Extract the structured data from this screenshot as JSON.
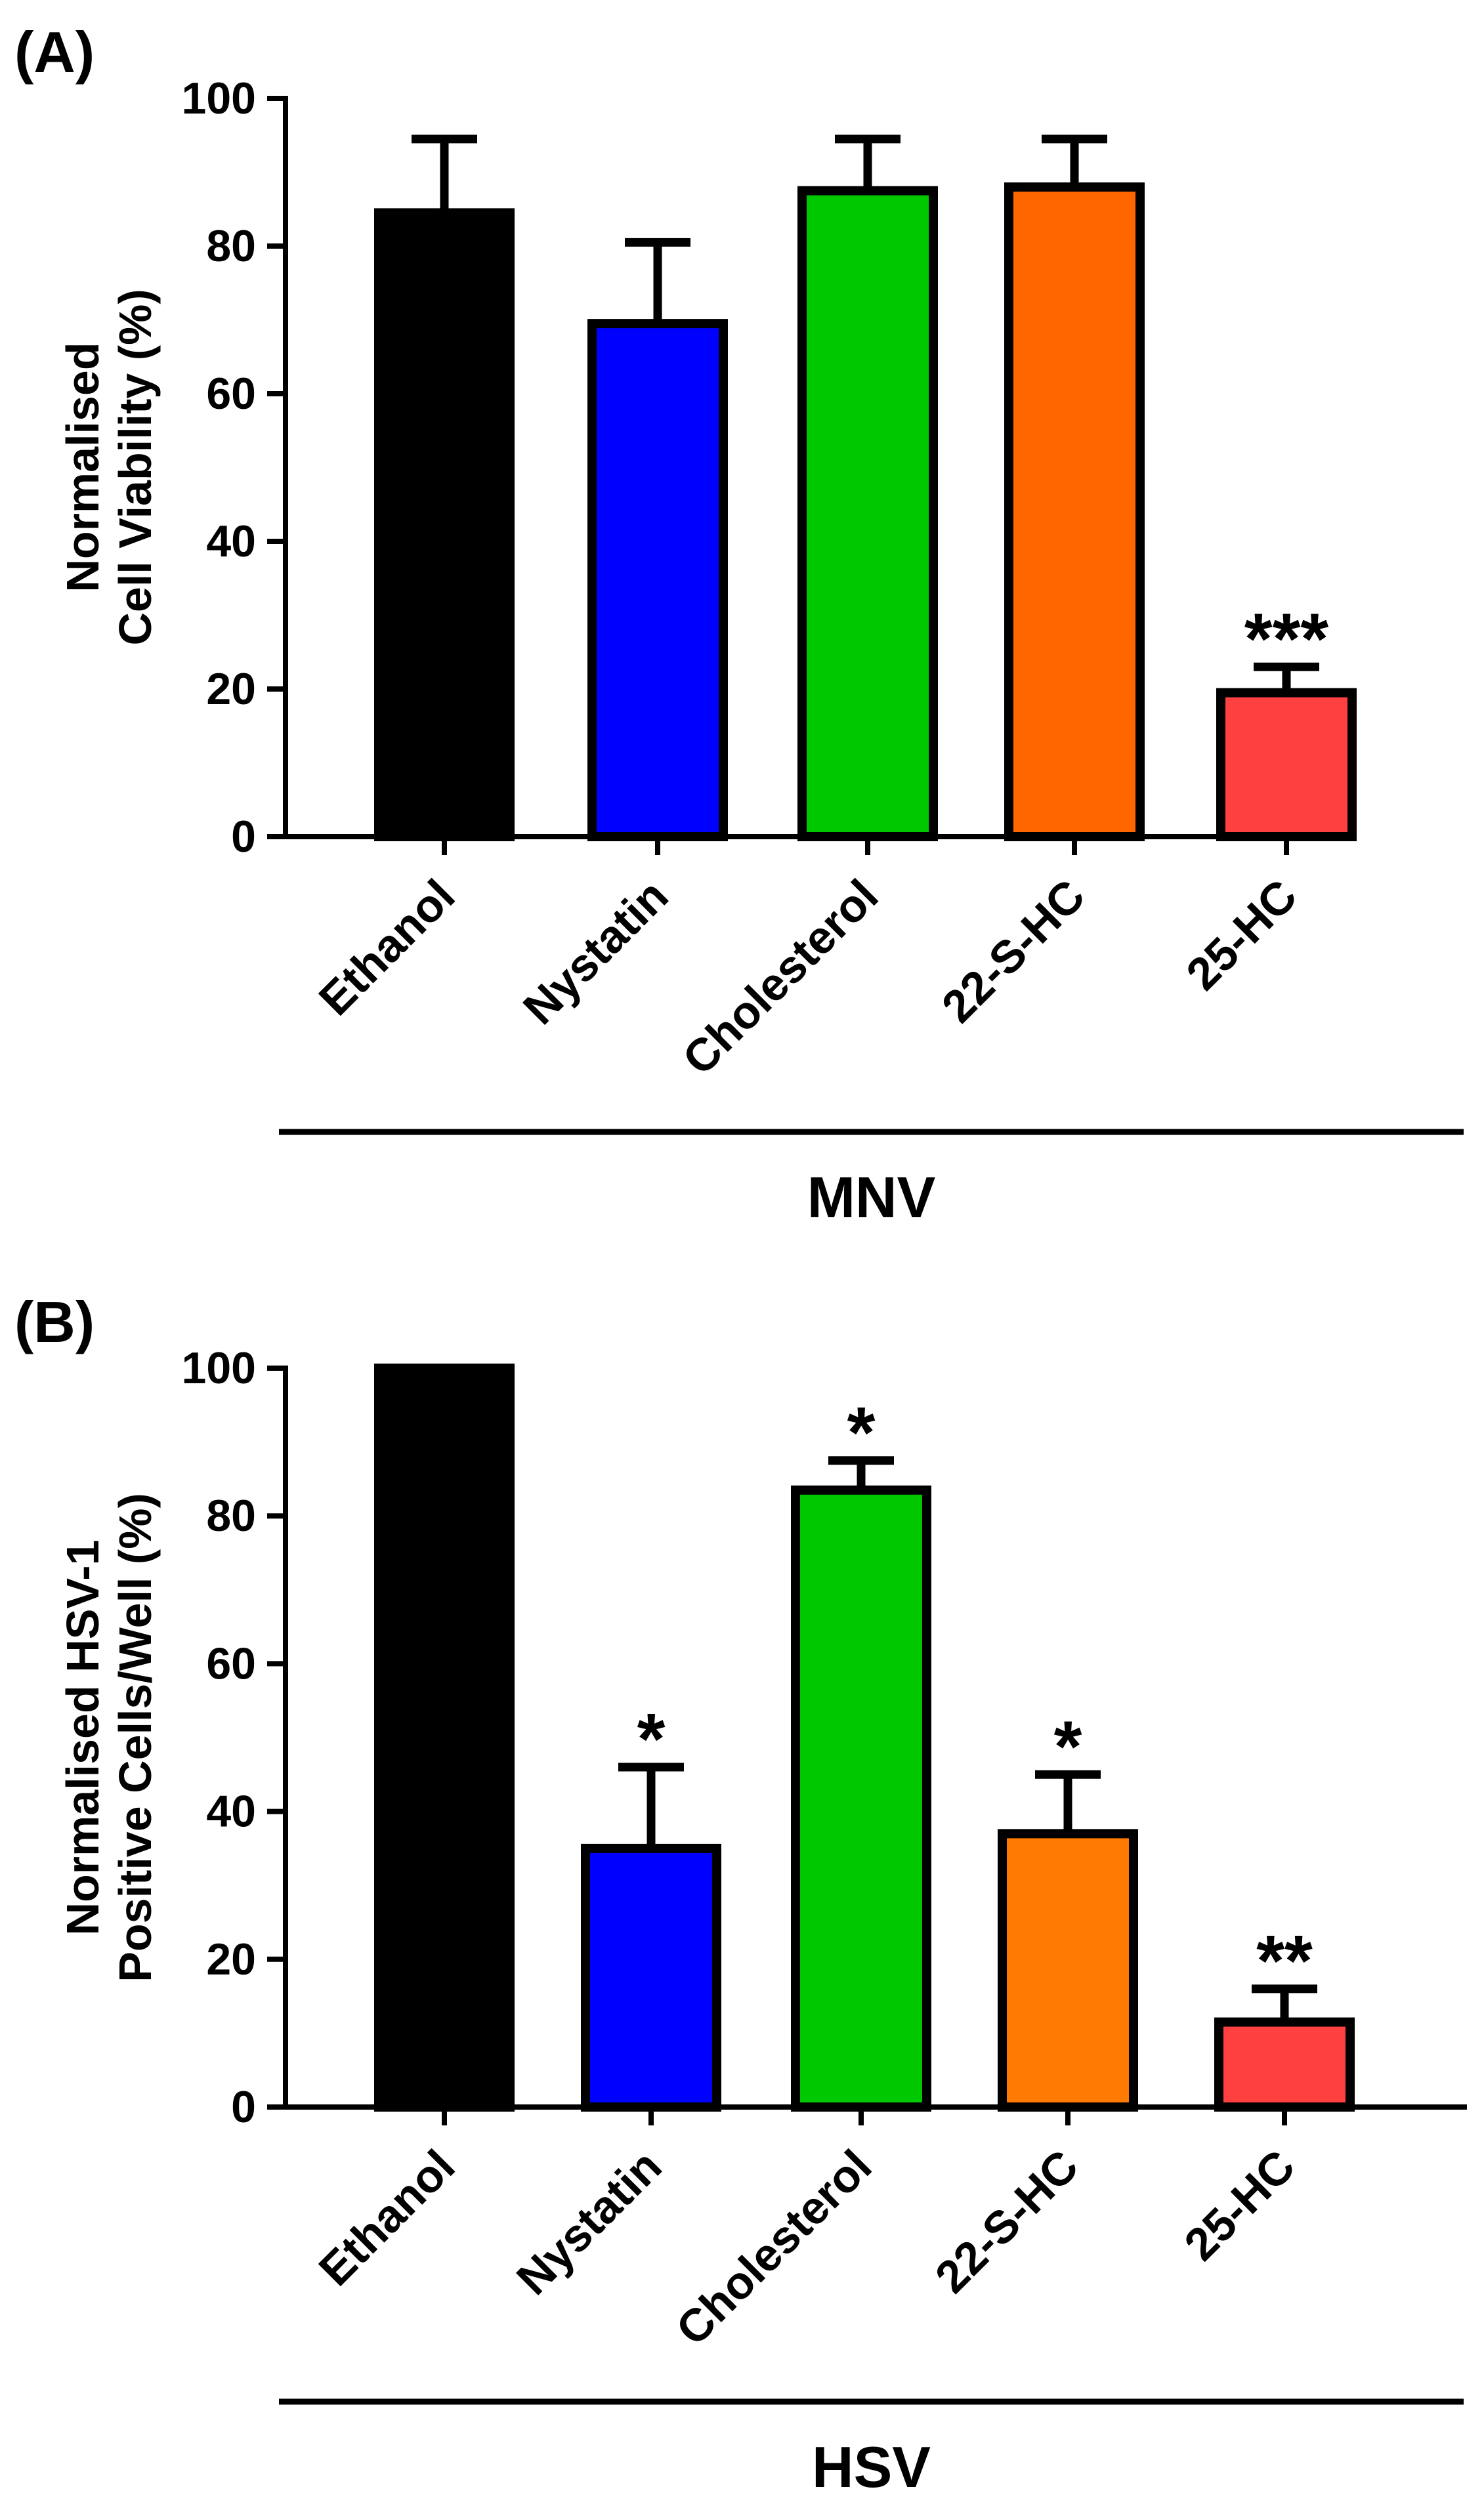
{
  "chart_data": [
    {
      "panel_label": "(A)",
      "type": "bar",
      "categories": [
        "Ethanol",
        "Nystatin",
        "Cholesterol",
        "22-S-HC",
        "25-HC"
      ],
      "values": [
        84.5,
        69.5,
        87.5,
        88,
        19.5
      ],
      "errors": [
        10,
        11,
        7,
        6.5,
        3.5
      ],
      "colors": [
        "#000000",
        "#0000ff",
        "#00c800",
        "#ff6600",
        "#ff4040"
      ],
      "significance": [
        "",
        "",
        "",
        "",
        "***"
      ],
      "ylabel_lines": [
        "Normalised",
        "Cell Viability (%)"
      ],
      "yticks": [
        "0",
        "20",
        "40",
        "60",
        "80",
        "100"
      ],
      "ylim": [
        0,
        100
      ],
      "group_label": "MNV"
    },
    {
      "panel_label": "(B)",
      "type": "bar",
      "categories": [
        "Ethanol",
        "Nystatin",
        "Cholesterol",
        "22-S-HC",
        "25-HC"
      ],
      "values": [
        100,
        35,
        83.5,
        37,
        11.5
      ],
      "errors": [
        0,
        11,
        4,
        8,
        4.5
      ],
      "colors": [
        "#000000",
        "#0000ff",
        "#00c800",
        "#ff7a00",
        "#ff4040"
      ],
      "significance": [
        "",
        "*",
        "*",
        "*",
        "**"
      ],
      "ylabel_lines": [
        "Normalised HSV-1",
        "Positive Cells/Well (%)"
      ],
      "yticks": [
        "0",
        "20",
        "40",
        "60",
        "80",
        "100"
      ],
      "ylim": [
        0,
        100
      ],
      "group_label": "HSV"
    }
  ]
}
